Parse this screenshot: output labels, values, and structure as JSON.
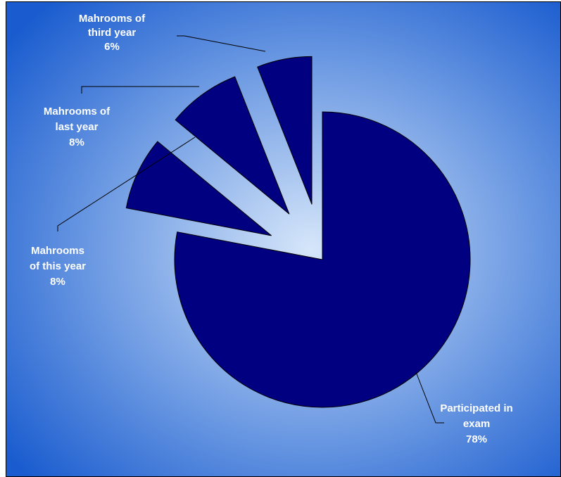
{
  "chart_data": {
    "type": "pie",
    "title": "",
    "exploded": true,
    "slices": [
      {
        "label_lines": [
          "Participated in",
          "exam"
        ],
        "value_label": "78%",
        "value": 78,
        "color": "#000080"
      },
      {
        "label_lines": [
          "Mahrooms",
          "of this year"
        ],
        "value_label": "8%",
        "value": 8,
        "color": "#000080"
      },
      {
        "label_lines": [
          "Mahrooms of",
          "last year"
        ],
        "value_label": "8%",
        "value": 8,
        "color": "#000080"
      },
      {
        "label_lines": [
          "Mahrooms of",
          "third year"
        ],
        "value_label": "6%",
        "value": 6,
        "color": "#000080"
      }
    ]
  },
  "colors": {
    "background_outer": "#1a5ccf",
    "background_center": "#d6e6fa",
    "slice_stroke": "#000000",
    "leader_line": "#000000",
    "label_text": "#ffffff"
  }
}
